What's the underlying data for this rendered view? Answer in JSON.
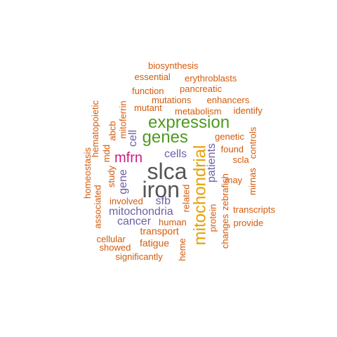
{
  "colors": {
    "dark_gray": "#555555",
    "gold": "#E6A000",
    "green": "#4E9A1E",
    "purple": "#6C5FA8",
    "magenta": "#CC1A7E",
    "orange": "#D45A0A"
  },
  "words": [
    {
      "text": "biosynthesis",
      "color": "orange"
    },
    {
      "text": "essential",
      "color": "orange"
    },
    {
      "text": "erythroblasts",
      "color": "orange"
    },
    {
      "text": "pancreatic",
      "color": "orange"
    },
    {
      "text": "function",
      "color": "orange"
    },
    {
      "text": "mutations",
      "color": "orange"
    },
    {
      "text": "enhancers",
      "color": "orange"
    },
    {
      "text": "mutant",
      "color": "orange"
    },
    {
      "text": "metabolism",
      "color": "orange"
    },
    {
      "text": "identify",
      "color": "orange"
    },
    {
      "text": "hematopoietic",
      "color": "orange"
    },
    {
      "text": "mitoferrin",
      "color": "orange"
    },
    {
      "text": "abcb",
      "color": "orange"
    },
    {
      "text": "expression",
      "color": "green"
    },
    {
      "text": "genes",
      "color": "green"
    },
    {
      "text": "genetic",
      "color": "orange"
    },
    {
      "text": "controls",
      "color": "orange"
    },
    {
      "text": "found",
      "color": "orange"
    },
    {
      "text": "cell",
      "color": "purple"
    },
    {
      "text": "homeostasis",
      "color": "orange"
    },
    {
      "text": "mdd",
      "color": "orange"
    },
    {
      "text": "mfrn",
      "color": "magenta"
    },
    {
      "text": "cells",
      "color": "purple"
    },
    {
      "text": "mitochondrial",
      "color": "gold"
    },
    {
      "text": "patients",
      "color": "purple"
    },
    {
      "text": "scla",
      "color": "orange"
    },
    {
      "text": "slca",
      "color": "dark_gray"
    },
    {
      "text": "study",
      "color": "orange"
    },
    {
      "text": "gene",
      "color": "purple"
    },
    {
      "text": "associated",
      "color": "orange"
    },
    {
      "text": "iron",
      "color": "dark_gray"
    },
    {
      "text": "zebrafish",
      "color": "orange"
    },
    {
      "text": "may",
      "color": "orange"
    },
    {
      "text": "mirnas",
      "color": "orange"
    },
    {
      "text": "related",
      "color": "orange"
    },
    {
      "text": "involved",
      "color": "orange"
    },
    {
      "text": "sfb",
      "color": "purple"
    },
    {
      "text": "protein",
      "color": "orange"
    },
    {
      "text": "transcripts",
      "color": "orange"
    },
    {
      "text": "mitochondria",
      "color": "purple"
    },
    {
      "text": "cancer",
      "color": "purple"
    },
    {
      "text": "human",
      "color": "orange"
    },
    {
      "text": "changes",
      "color": "orange"
    },
    {
      "text": "provide",
      "color": "orange"
    },
    {
      "text": "transport",
      "color": "orange"
    },
    {
      "text": "cellular",
      "color": "orange"
    },
    {
      "text": "showed",
      "color": "orange"
    },
    {
      "text": "fatigue",
      "color": "orange"
    },
    {
      "text": "heme",
      "color": "orange"
    },
    {
      "text": "significantly",
      "color": "orange"
    }
  ]
}
